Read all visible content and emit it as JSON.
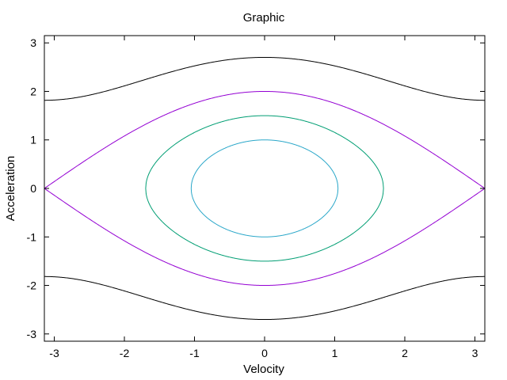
{
  "chart_data": {
    "type": "line",
    "title": "Graphic",
    "xlabel": "Velocity",
    "ylabel": "Acceleration",
    "xlim": [
      -3.14159,
      3.14159
    ],
    "ylim": [
      -3.15,
      3.15
    ],
    "xticks": [
      -3,
      -2,
      -1,
      0,
      1,
      2,
      3
    ],
    "yticks": [
      -3,
      -2,
      -1,
      0,
      1,
      2,
      3
    ],
    "xtick_labels": [
      "-3",
      "-2",
      "-1",
      "0",
      "1",
      "2",
      "3"
    ],
    "ytick_labels": [
      "-3",
      "-2",
      "-1",
      "0",
      "1",
      "2",
      "3"
    ],
    "grid": false,
    "legend": "none",
    "series": [
      {
        "energy": 0.5,
        "color": "#2aa7c9"
      },
      {
        "energy": 1.125,
        "color": "#009e73"
      },
      {
        "energy": 2.0,
        "color": "#9400d3"
      },
      {
        "energy": 3.65,
        "color": "#000000"
      }
    ]
  }
}
